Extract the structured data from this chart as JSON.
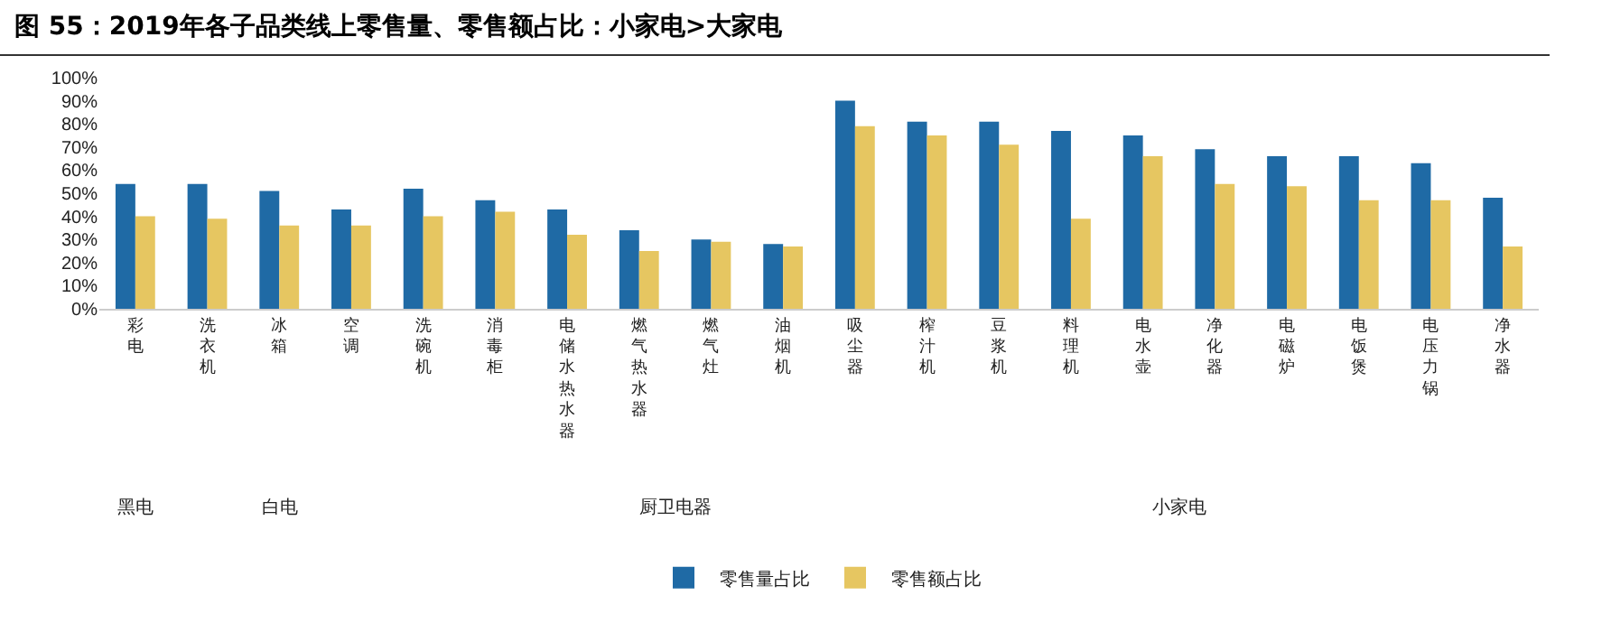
{
  "chart_data": {
    "type": "bar",
    "title": "图 55：2019年各子品类线上零售量、零售额占比：小家电>大家电",
    "categories": [
      "彩电",
      "洗衣机",
      "冰箱",
      "空调",
      "洗碗机",
      "消毒柜",
      "电储水热水器",
      "燃气热水器",
      "燃气灶",
      "油烟机",
      "吸尘器",
      "榨汁机",
      "豆浆机",
      "料理机",
      "电水壶",
      "净化器",
      "电磁炉",
      "电饭煲",
      "电压力锅",
      "净水器"
    ],
    "series": [
      {
        "name": "零售量占比",
        "color": "#1f6aa5",
        "values": [
          54,
          54,
          51,
          43,
          52,
          47,
          43,
          34,
          30,
          28,
          90,
          81,
          81,
          77,
          75,
          69,
          66,
          66,
          63,
          48
        ]
      },
      {
        "name": "零售额占比",
        "color": "#e6c661",
        "values": [
          40,
          39,
          36,
          36,
          40,
          42,
          32,
          25,
          29,
          27,
          79,
          75,
          71,
          39,
          66,
          54,
          53,
          47,
          47,
          27
        ]
      }
    ],
    "ylim": [
      0,
      100
    ],
    "yticks": [
      {
        "value": 0,
        "label": "0%"
      },
      {
        "value": 10,
        "label": "10%"
      },
      {
        "value": 20,
        "label": "20%"
      },
      {
        "value": 30,
        "label": "30%"
      },
      {
        "value": 40,
        "label": "40%"
      },
      {
        "value": 50,
        "label": "50%"
      },
      {
        "value": 60,
        "label": "60%"
      },
      {
        "value": 70,
        "label": "70%"
      },
      {
        "value": 80,
        "label": "80%"
      },
      {
        "value": 90,
        "label": "90%"
      },
      {
        "value": 100,
        "label": "100%"
      }
    ],
    "annotations": [
      "黑电",
      "白电",
      "厨卫电器",
      "小家电"
    ],
    "grid": false,
    "legend": "bottom"
  }
}
